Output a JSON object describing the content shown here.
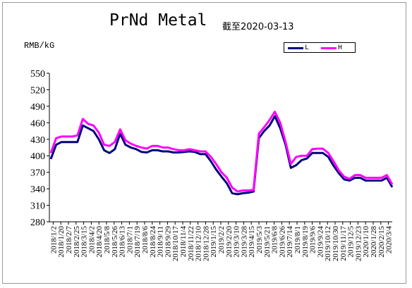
{
  "chart_data": {
    "type": "line",
    "title": "PrNd Metal",
    "subtitle": "截至2020-03-13",
    "ylabel": "RMB/kG",
    "xlabel": "",
    "ylim": [
      280,
      550
    ],
    "yticks": [
      280,
      310,
      340,
      370,
      400,
      430,
      460,
      490,
      520,
      550
    ],
    "grid": false,
    "legend": "top-right",
    "colors": {
      "L": "#00007f",
      "H": "#ff00ff"
    },
    "xticks": [
      "2018/1/2",
      "2018/1/20",
      "2018/2/7",
      "2018/2/25",
      "2018/3/15",
      "2018/4/2",
      "2018/4/20",
      "2018/5/8",
      "2018/5/26",
      "2018/6/13",
      "2018/7/1",
      "2018/7/19",
      "2018/8/6",
      "2018/8/24",
      "2018/9/11",
      "2018/9/29",
      "2018/10/17",
      "2018/11/4",
      "2018/11/22",
      "2018/12/10",
      "2018/12/28",
      "2019/1/15",
      "2019/2/2",
      "2019/2/20",
      "2019/3/10",
      "2019/3/28",
      "2019/4/15",
      "2019/5/3",
      "2019/5/21",
      "2019/6/8",
      "2019/6/26",
      "2019/7/14",
      "2019/8/1",
      "2019/8/19",
      "2019/9/6",
      "2019/9/24",
      "2019/10/12",
      "2019/10/30",
      "2019/11/17",
      "2019/12/5",
      "2019/12/23",
      "2020/1/10",
      "2020/1/28",
      "2020/2/15",
      "2020/3/4"
    ],
    "series": [
      {
        "name": "L",
        "values": [
          394,
          420,
          425,
          425,
          425,
          425,
          455,
          450,
          445,
          430,
          410,
          405,
          412,
          440,
          420,
          415,
          412,
          407,
          406,
          410,
          410,
          408,
          408,
          406,
          406,
          407,
          408,
          407,
          403,
          403,
          390,
          375,
          362,
          350,
          332,
          330,
          332,
          333,
          335,
          432,
          445,
          455,
          472,
          450,
          420,
          378,
          383,
          392,
          395,
          405,
          405,
          405,
          398,
          382,
          368,
          357,
          355,
          360,
          360,
          355,
          355,
          355,
          355,
          360,
          343
        ]
      },
      {
        "name": "H",
        "values": [
          405,
          432,
          435,
          435,
          435,
          437,
          467,
          458,
          455,
          442,
          420,
          418,
          425,
          448,
          428,
          422,
          418,
          415,
          413,
          418,
          418,
          415,
          415,
          412,
          410,
          410,
          412,
          410,
          408,
          408,
          398,
          385,
          370,
          360,
          342,
          335,
          337,
          337,
          338,
          440,
          452,
          465,
          480,
          460,
          425,
          385,
          398,
          400,
          400,
          412,
          413,
          413,
          405,
          390,
          373,
          362,
          358,
          365,
          365,
          360,
          360,
          360,
          360,
          365,
          348
        ]
      }
    ]
  }
}
